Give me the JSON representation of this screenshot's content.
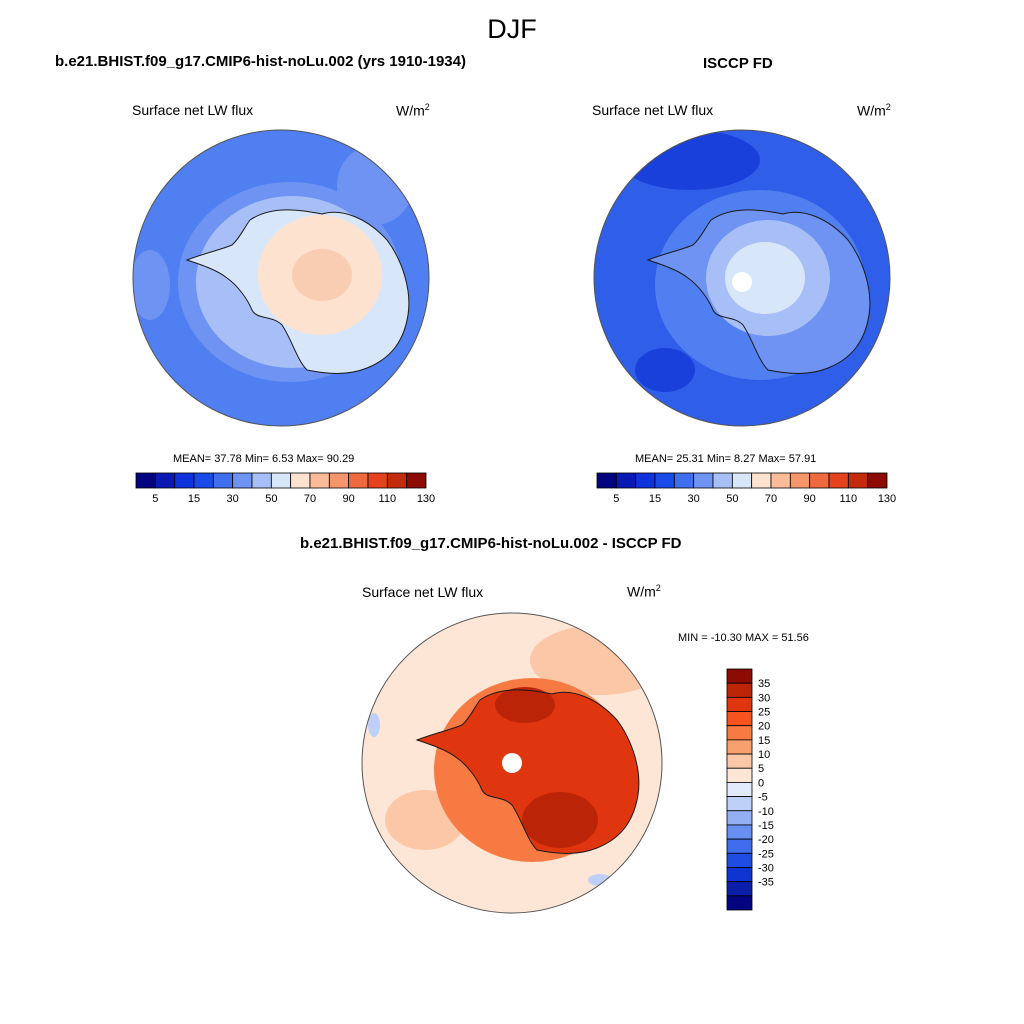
{
  "title": "DJF",
  "panels": {
    "model": {
      "header": "b.e21.BHIST.f09_g17.CMIP6-hist-noLu.002 (yrs 1910-1934)",
      "variable": "Surface net LW flux",
      "units_base": "W/m",
      "units_sup": "2",
      "stats": "MEAN=  37.78  Min=   6.53  Max=  90.29"
    },
    "obs": {
      "header": "ISCCP FD",
      "variable": "Surface net LW flux",
      "units_base": "W/m",
      "units_sup": "2",
      "stats": "MEAN=  25.31  Min=   8.27  Max=  57.91"
    },
    "diff": {
      "header": "b.e21.BHIST.f09_g17.CMIP6-hist-noLu.002 - ISCCP FD",
      "variable": "Surface net LW flux",
      "units_base": "W/m",
      "units_sup": "2",
      "stats": "MIN = -10.30 MAX =  51.56"
    }
  },
  "colorbars": {
    "absolute": {
      "colors": [
        "#030580",
        "#0a18b4",
        "#0e32dc",
        "#1a4be8",
        "#3f6fee",
        "#6e93f2",
        "#a7bff6",
        "#d8e6fa",
        "#fde3cf",
        "#f9bb98",
        "#f5956b",
        "#ef6a3e",
        "#e5421e",
        "#c42a0c",
        "#8c0b03"
      ],
      "tick_labels": [
        "5",
        "15",
        "30",
        "50",
        "70",
        "90",
        "110",
        "130"
      ]
    },
    "difference": {
      "colors": [
        "#8c0b03",
        "#bc2408",
        "#e0360f",
        "#f6531e",
        "#f77a42",
        "#f9a06f",
        "#fbc7a6",
        "#fde6d6",
        "#e1ebfb",
        "#bfd0f8",
        "#93b0f4",
        "#678ef0",
        "#3f6dec",
        "#1f4de4",
        "#0e34d2",
        "#0a1eaa",
        "#030580"
      ],
      "tick_labels": [
        "35",
        "30",
        "25",
        "20",
        "15",
        "10",
        "5",
        "0",
        "-5",
        "-10",
        "-15",
        "-20",
        "-25",
        "-30",
        "-35"
      ]
    }
  },
  "map_colors": {
    "ocean_model": "#4f7ff0",
    "ocean_model_light": "#6e93f2",
    "coast_model": "#a7bff6",
    "interior_model": "#fde3cf",
    "interior_model_warm": "#f9cdb2",
    "ocean_obs": "#2f5fe8",
    "ocean_obs_dark": "#1a40dc",
    "coast_obs": "#6e93f2",
    "interior_obs": "#d8e6fa",
    "diff_ocean": "#fde6d6",
    "diff_ocean_warm": "#fbc7a6",
    "diff_land": "#e0360f",
    "diff_land_dark": "#bc2408",
    "diff_edge": "#f77a42",
    "coastline": "#1a1a1a"
  }
}
